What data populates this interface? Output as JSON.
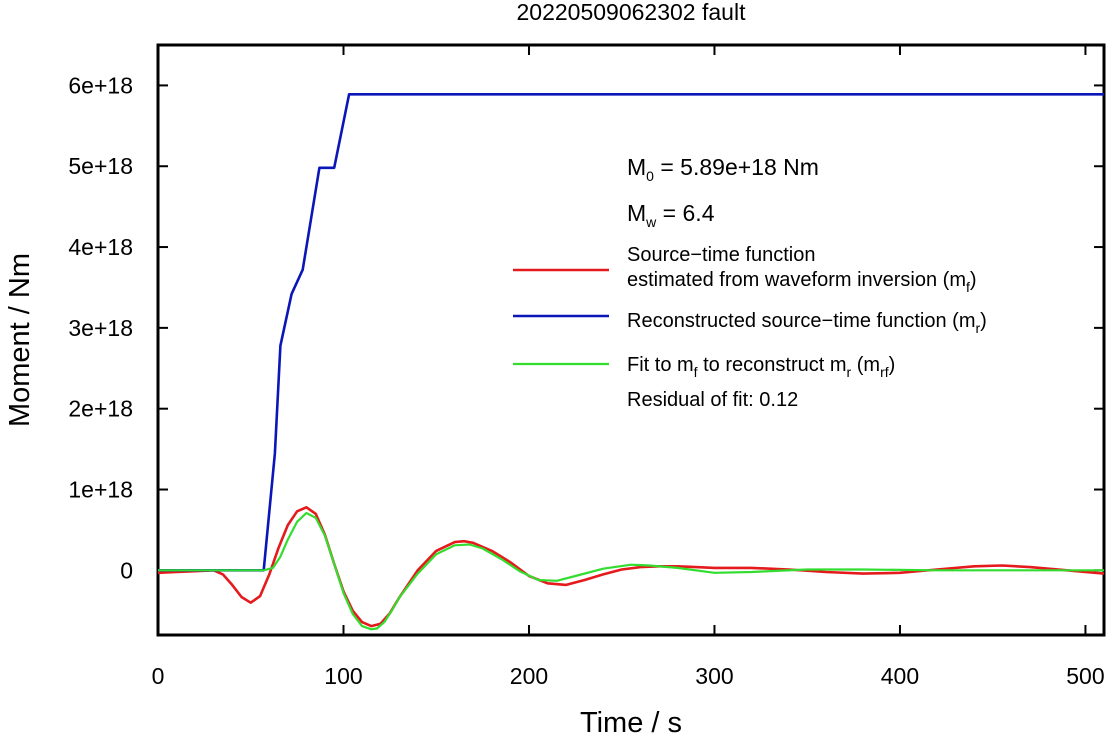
{
  "chart_data": {
    "type": "line",
    "title": "20220509062302 fault",
    "xlabel": "Time / s",
    "ylabel": "Moment / Nm",
    "xlim": [
      0,
      510
    ],
    "ylim": [
      -8e+17,
      6.5e+18
    ],
    "xticks": [
      0,
      100,
      200,
      300,
      400,
      500
    ],
    "xtick_labels": [
      "0",
      "100",
      "200",
      "300",
      "400",
      "500"
    ],
    "yticks": [
      0,
      1e+18,
      2e+18,
      3e+18,
      4e+18,
      5e+18,
      6e+18
    ],
    "ytick_labels": [
      "0",
      "1e+18",
      "2e+18",
      "3e+18",
      "4e+18",
      "5e+18",
      "6e+18"
    ],
    "grid": false,
    "legend_position": "right",
    "annotations": {
      "m0": {
        "base": "M",
        "sub": "0",
        "rest": " = 5.89e+18 Nm"
      },
      "mw": {
        "base": "M",
        "sub": "w",
        "rest": " = 6.4"
      },
      "residual": "Residual of fit: 0.12"
    },
    "series": [
      {
        "key": "stf",
        "color": "#e41a1c",
        "legend_lines": [
          [
            {
              "t": "Source−time function"
            }
          ],
          [
            {
              "t": "estimated from waveform inversion (m"
            },
            {
              "s": "f"
            },
            {
              "t": ")"
            }
          ]
        ],
        "x": [
          0,
          10,
          20,
          30,
          35,
          40,
          45,
          50,
          55,
          60,
          65,
          70,
          75,
          80,
          85,
          90,
          95,
          100,
          105,
          110,
          115,
          120,
          125,
          130,
          140,
          150,
          160,
          165,
          170,
          180,
          190,
          200,
          210,
          220,
          230,
          240,
          250,
          260,
          270,
          280,
          290,
          300,
          320,
          340,
          360,
          380,
          400,
          420,
          440,
          455,
          470,
          490,
          510
        ],
        "y": [
          -3e+16,
          -2e+16,
          -1e+16,
          0.0,
          -5e+16,
          -1.8e+17,
          -3.3e+17,
          -4e+17,
          -3.2e+17,
          -5e+16,
          2.8e+17,
          5.6e+17,
          7.3e+17,
          7.8e+17,
          7e+17,
          4.4e+17,
          8e+16,
          -2.6e+17,
          -5e+17,
          -6.4e+17,
          -6.9e+17,
          -6.6e+17,
          -5.3e+17,
          -3.4e+17,
          0.0,
          2.4e+17,
          3.5e+17,
          3.6e+17,
          3.4e+17,
          2.4e+17,
          1e+17,
          -7e+16,
          -1.6e+17,
          -1.8e+17,
          -1.2e+17,
          -5e+16,
          1e+16,
          4e+16,
          5e+16,
          5e+16,
          4e+16,
          3e+16,
          3e+16,
          1e+16,
          -2e+16,
          -4e+16,
          -3e+16,
          1e+16,
          5e+16,
          6e+16,
          4e+16,
          0.0,
          -4e+16
        ]
      },
      {
        "key": "rstf",
        "color": "#0b16b8",
        "legend_lines": [
          [
            {
              "t": "Reconstructed source−time function (m"
            },
            {
              "s": "r"
            },
            {
              "t": ")"
            }
          ]
        ],
        "x": [
          0,
          57,
          63,
          66,
          72,
          78,
          87,
          95,
          103,
          510
        ],
        "y": [
          0,
          0,
          1.45e+18,
          2.78e+18,
          3.42e+18,
          3.72e+18,
          4.98e+18,
          4.98e+18,
          5.89e+18,
          5.89e+18
        ]
      },
      {
        "key": "fit",
        "color": "#33dd2f",
        "legend_lines": [
          [
            {
              "t": "Fit to m"
            },
            {
              "s": "f"
            },
            {
              "t": " to reconstruct m"
            },
            {
              "s": "r"
            },
            {
              "t": " (m"
            },
            {
              "s": "rf"
            },
            {
              "t": ")"
            }
          ]
        ],
        "x": [
          0,
          57,
          62,
          66,
          70,
          75,
          80,
          85,
          90,
          95,
          100,
          105,
          110,
          115,
          118,
          122,
          126,
          130,
          140,
          150,
          160,
          168,
          175,
          185,
          195,
          205,
          215,
          225,
          240,
          255,
          265,
          280,
          300,
          320,
          350,
          380,
          420,
          460,
          490,
          510
        ],
        "y": [
          0,
          0,
          3e+16,
          1.7e+17,
          3.8e+17,
          6e+17,
          7.1e+17,
          6.5e+17,
          4.3e+17,
          8e+16,
          -2.8e+17,
          -5.4e+17,
          -6.9e+17,
          -7.3e+17,
          -7.2e+17,
          -6.4e+17,
          -5e+17,
          -3.4e+17,
          -4e+16,
          2e+17,
          3.1e+17,
          3.2e+17,
          2.7e+17,
          1.4e+17,
          -1e+16,
          -1.2e+17,
          -1.3e+17,
          -7e+16,
          2e+16,
          7e+16,
          6e+16,
          3e+16,
          -3e+16,
          -2e+16,
          1e+16,
          1e+16,
          0.0,
          0.0,
          0.0,
          0.0
        ]
      }
    ]
  }
}
